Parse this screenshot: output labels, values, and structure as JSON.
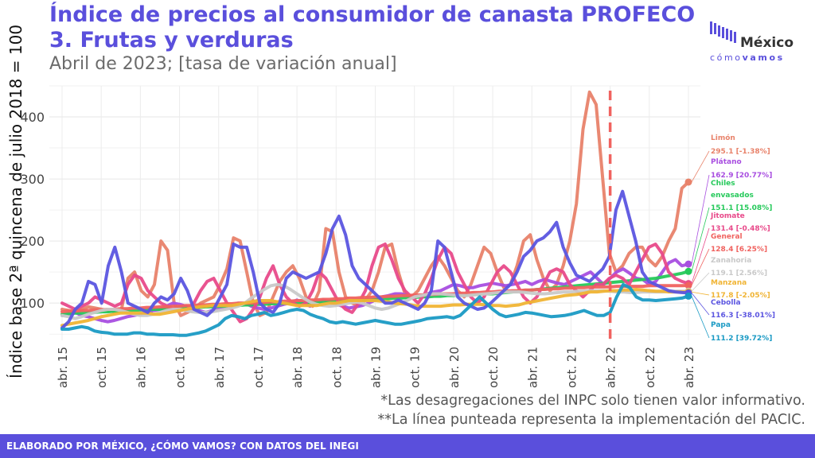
{
  "header": {
    "title_line1": "Índice de precios al consumidor de canasta PROFECO",
    "title_line2": "3. Frutas y verduras",
    "subtitle": "Abril de 2023; [tasa de variación anual]"
  },
  "logo": {
    "word": "México",
    "sub_light": "cómo",
    "sub_bold": "vamos"
  },
  "notes": {
    "note1": "*Las desagregaciones del INPC solo tienen valor informativo.",
    "note2": "**La línea punteada representa la implementación del PACIC."
  },
  "footer": {
    "text": "ELABORADO POR MÉXICO, ¿CÓMO VAMOS? CON DATOS DEL INEGI"
  },
  "chart_data": {
    "type": "line",
    "ylabel": "Índice base 2ª quincena de julio 2018 = 100",
    "ylim": [
      40,
      450
    ],
    "yticks": [
      100,
      200,
      300,
      400
    ],
    "xlim": [
      "2015-04",
      "2023-04"
    ],
    "xticks": [
      "abr. 15",
      "oct. 15",
      "abr. 16",
      "oct. 16",
      "abr. 17",
      "oct. 17",
      "abr. 18",
      "oct. 18",
      "abr. 19",
      "oct. 19",
      "abr. 20",
      "oct. 20",
      "abr. 21",
      "oct. 21",
      "abr. 22",
      "oct. 22",
      "abr. 23"
    ],
    "vline": {
      "at": "abr. 22",
      "color": "#f0625f"
    },
    "grid": true,
    "legend_position": "right",
    "series": [
      {
        "name": "Limón",
        "label": "295.1 [-1.38%]",
        "color": "#e8826a",
        "values": [
          90,
          88,
          86,
          90,
          94,
          92,
          90,
          88,
          86,
          90,
          140,
          150,
          120,
          110,
          130,
          200,
          185,
          100,
          80,
          85,
          90,
          100,
          105,
          110,
          130,
          155,
          205,
          200,
          150,
          100,
          80,
          85,
          110,
          135,
          150,
          160,
          140,
          110,
          95,
          120,
          220,
          215,
          150,
          110,
          100,
          95,
          105,
          120,
          150,
          190,
          195,
          150,
          115,
          110,
          120,
          140,
          160,
          175,
          160,
          140,
          120,
          110,
          130,
          160,
          190,
          180,
          150,
          125,
          130,
          160,
          200,
          210,
          170,
          140,
          120,
          130,
          160,
          200,
          260,
          380,
          440,
          420,
          300,
          180,
          150,
          160,
          180,
          190,
          190,
          170,
          160,
          175,
          200,
          220,
          285,
          295
        ]
      },
      {
        "name": "Plátano",
        "label": "162.9 [20.77%]",
        "color": "#a84ee0",
        "values": [
          80,
          82,
          85,
          80,
          78,
          75,
          72,
          70,
          72,
          75,
          78,
          80,
          82,
          85,
          88,
          90,
          95,
          100,
          98,
          95,
          90,
          88,
          85,
          88,
          90,
          92,
          95,
          100,
          100,
          95,
          92,
          90,
          92,
          95,
          98,
          100,
          105,
          100,
          95,
          100,
          105,
          102,
          98,
          95,
          92,
          94,
          96,
          100,
          105,
          110,
          112,
          115,
          115,
          112,
          110,
          112,
          115,
          118,
          120,
          125,
          130,
          128,
          125,
          125,
          128,
          130,
          132,
          130,
          128,
          130,
          132,
          135,
          130,
          135,
          138,
          135,
          132,
          130,
          135,
          140,
          145,
          150,
          140,
          130,
          140,
          150,
          155,
          148,
          140,
          138,
          130,
          135,
          150,
          165,
          170,
          160,
          162.9
        ]
      },
      {
        "name": "Chiles envasados",
        "label": "151.1 [15.08%]",
        "color": "#25c95a",
        "values": [
          82,
          83,
          84,
          84,
          85,
          85,
          86,
          86,
          87,
          87,
          88,
          88,
          89,
          89,
          90,
          90,
          91,
          91,
          92,
          92,
          93,
          93,
          94,
          94,
          95,
          95,
          96,
          96,
          97,
          97,
          98,
          98,
          99,
          99,
          100,
          100,
          100,
          101,
          101,
          102,
          102,
          103,
          103,
          104,
          104,
          105,
          105,
          106,
          106,
          107,
          107,
          108,
          108,
          109,
          109,
          110,
          110,
          111,
          111,
          112,
          112,
          113,
          113,
          114,
          114,
          115,
          115,
          116,
          117,
          118,
          119,
          120,
          121,
          122,
          123,
          124,
          125,
          126,
          127,
          128,
          129,
          130,
          131,
          132,
          133,
          134,
          135,
          136,
          137,
          138,
          139,
          140,
          142,
          144,
          146,
          148,
          151.1
        ]
      },
      {
        "name": "Jitomate",
        "label": "131.4 [-0.48%]",
        "color": "#e84a8a",
        "values": [
          100,
          95,
          90,
          95,
          100,
          110,
          105,
          100,
          95,
          100,
          130,
          145,
          140,
          120,
          110,
          100,
          95,
          90,
          88,
          90,
          100,
          120,
          135,
          140,
          120,
          100,
          85,
          70,
          75,
          90,
          110,
          140,
          160,
          130,
          110,
          100,
          95,
          100,
          120,
          150,
          140,
          120,
          100,
          90,
          85,
          100,
          120,
          160,
          190,
          195,
          170,
          140,
          120,
          110,
          100,
          115,
          140,
          170,
          190,
          180,
          150,
          130,
          110,
          100,
          110,
          130,
          150,
          160,
          150,
          130,
          110,
          100,
          110,
          130,
          150,
          155,
          150,
          130,
          120,
          110,
          120,
          130,
          130,
          140,
          145,
          140,
          130,
          150,
          170,
          190,
          195,
          180,
          150,
          140,
          135,
          131.4
        ]
      },
      {
        "name": "General",
        "label": "128.4 [6.25%]",
        "color": "#f0625f",
        "values": [
          86,
          87,
          87,
          88,
          88,
          89,
          89,
          90,
          90,
          91,
          91,
          92,
          92,
          93,
          93,
          94,
          94,
          95,
          95,
          96,
          96,
          97,
          97,
          98,
          98,
          99,
          99,
          100,
          100,
          100,
          101,
          101,
          102,
          102,
          103,
          103,
          104,
          104,
          105,
          105,
          106,
          106,
          107,
          107,
          108,
          108,
          109,
          109,
          110,
          110,
          111,
          111,
          112,
          112,
          113,
          113,
          114,
          114,
          115,
          115,
          115,
          116,
          116,
          117,
          117,
          118,
          118,
          119,
          119,
          120,
          120,
          121,
          121,
          122,
          122,
          123,
          123,
          124,
          124,
          125,
          125,
          126,
          126,
          126,
          126,
          127,
          127,
          127,
          127,
          127,
          128,
          128,
          128,
          128,
          128,
          128,
          128.4
        ]
      },
      {
        "name": "Zanahoria",
        "label": "119.1 [2.56%]",
        "color": "#c9c9c9",
        "values": [
          80,
          78,
          75,
          78,
          82,
          85,
          88,
          90,
          90,
          88,
          85,
          82,
          80,
          80,
          82,
          85,
          88,
          90,
          90,
          88,
          86,
          85,
          85,
          86,
          88,
          90,
          92,
          95,
          100,
          108,
          115,
          122,
          128,
          130,
          128,
          122,
          115,
          108,
          102,
          98,
          96,
          95,
          96,
          98,
          100,
          102,
          100,
          96,
          92,
          90,
          92,
          96,
          100,
          105,
          110,
          112,
          114,
          115,
          115,
          114,
          113,
          112,
          112,
          113,
          114,
          115,
          116,
          117,
          118,
          118,
          118,
          117,
          116,
          115,
          115,
          116,
          117,
          118,
          118,
          119,
          119,
          120,
          120,
          120,
          119,
          118,
          118,
          117,
          117,
          118,
          118,
          118,
          118,
          119,
          119,
          119,
          119.1
        ]
      },
      {
        "name": "Manzana",
        "label": "117.8 [-2.05%]",
        "color": "#f0b434",
        "values": [
          64,
          66,
          68,
          70,
          72,
          75,
          78,
          80,
          82,
          84,
          84,
          84,
          84,
          84,
          82,
          82,
          84,
          86,
          88,
          90,
          92,
          94,
          95,
          96,
          96,
          96,
          96,
          98,
          100,
          102,
          104,
          104,
          104,
          102,
          100,
          98,
          96,
          96,
          96,
          96,
          98,
          100,
          100,
          102,
          104,
          104,
          104,
          104,
          104,
          103,
          102,
          100,
          99,
          98,
          96,
          95,
          95,
          95,
          95,
          96,
          97,
          97,
          98,
          98,
          98,
          97,
          96,
          96,
          95,
          96,
          97,
          100,
          102,
          104,
          106,
          108,
          110,
          112,
          113,
          114,
          116,
          118,
          118,
          119,
          120,
          120,
          121,
          121,
          122,
          121,
          120,
          119,
          119,
          118,
          118,
          118,
          117.8
        ]
      },
      {
        "name": "Cebolla",
        "label": "116.3 [-38.01%]",
        "color": "#5b55e0",
        "values": [
          60,
          70,
          90,
          100,
          135,
          130,
          100,
          160,
          190,
          150,
          100,
          95,
          90,
          85,
          100,
          110,
          105,
          115,
          140,
          120,
          90,
          85,
          80,
          90,
          110,
          130,
          195,
          190,
          190,
          150,
          100,
          90,
          85,
          100,
          140,
          150,
          145,
          140,
          145,
          150,
          180,
          220,
          240,
          210,
          160,
          140,
          130,
          120,
          110,
          100,
          100,
          105,
          100,
          95,
          90,
          100,
          120,
          200,
          190,
          150,
          110,
          100,
          95,
          90,
          92,
          100,
          110,
          120,
          130,
          150,
          175,
          185,
          200,
          205,
          215,
          230,
          190,
          165,
          145,
          140,
          135,
          145,
          155,
          175,
          250,
          280,
          240,
          200,
          150,
          135,
          130,
          125,
          120,
          118,
          117,
          116.3
        ]
      },
      {
        "name": "Papa",
        "label": "111.2 [39.72%]",
        "color": "#1a9ac4",
        "values": [
          58,
          58,
          60,
          62,
          60,
          55,
          53,
          52,
          50,
          50,
          50,
          52,
          52,
          50,
          50,
          49,
          49,
          49,
          48,
          48,
          50,
          52,
          55,
          60,
          65,
          75,
          80,
          78,
          75,
          80,
          82,
          85,
          80,
          82,
          85,
          88,
          90,
          88,
          82,
          78,
          75,
          70,
          68,
          70,
          68,
          66,
          68,
          70,
          72,
          70,
          68,
          66,
          66,
          68,
          70,
          72,
          75,
          76,
          77,
          78,
          76,
          80,
          90,
          100,
          110,
          100,
          90,
          82,
          78,
          80,
          82,
          85,
          84,
          82,
          80,
          78,
          79,
          80,
          82,
          85,
          88,
          84,
          80,
          80,
          85,
          110,
          130,
          125,
          110,
          105,
          105,
          104,
          105,
          106,
          107,
          108,
          111.2
        ]
      }
    ]
  }
}
